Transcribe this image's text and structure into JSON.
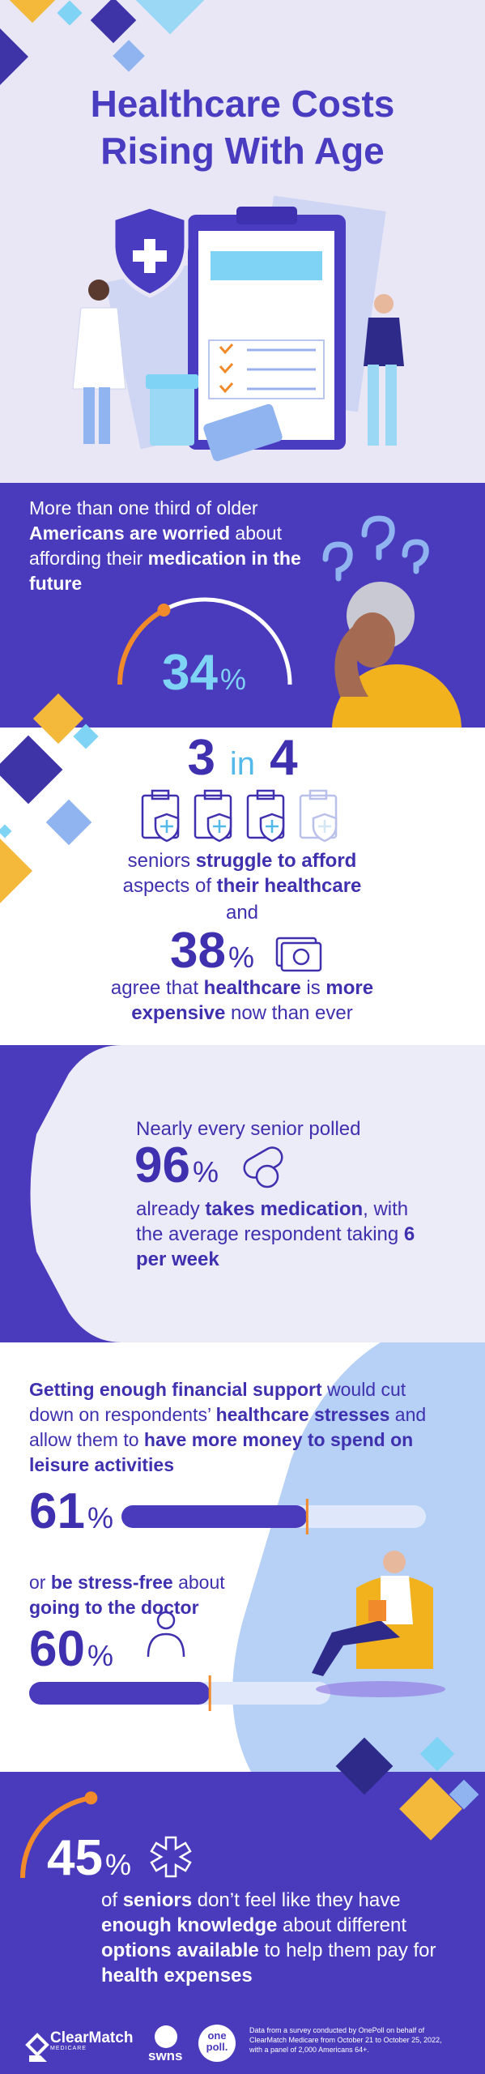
{
  "header": {
    "title": [
      "Healthcare Costs",
      "Rising With Age"
    ]
  },
  "worried": {
    "text": [
      {
        "text": "More than one third of older "
      },
      {
        "text": "Americans are worried",
        "bold": true
      },
      {
        "text": " about affording their "
      },
      {
        "text": "medication in the future",
        "bold": true
      }
    ],
    "stat": {
      "value": 34,
      "unit": "%"
    },
    "range": [
      0,
      100
    ]
  },
  "afford": {
    "ratio": {
      "numerator": 3,
      "word": "in",
      "denominator": 4
    },
    "text": [
      {
        "text": "seniors "
      },
      {
        "text": "struggle to afford",
        "bold": true
      },
      {
        "text": " aspects of "
      },
      {
        "text": "their healthcare",
        "bold": true
      }
    ],
    "conjunction": "and",
    "stat": {
      "value": 38,
      "unit": "%"
    },
    "text2": [
      {
        "text": "agree that "
      },
      {
        "text": "healthcare",
        "bold": true
      },
      {
        "text": " is "
      },
      {
        "text": "more expensive",
        "bold": true
      },
      {
        "text": " now than ever"
      }
    ]
  },
  "medication": {
    "lead": "Nearly every senior polled",
    "stat": {
      "value": 96,
      "unit": "%"
    },
    "text": [
      {
        "text": "already "
      },
      {
        "text": "takes medication",
        "bold": true
      },
      {
        "text": ", with the average respondent taking "
      },
      {
        "text": "6 per week",
        "bold": true
      }
    ]
  },
  "support": {
    "text": [
      {
        "text": "Getting enough financial support",
        "bold": true
      },
      {
        "text": " would cut down on respondents’ "
      },
      {
        "text": "healthcare stresses",
        "bold": true
      },
      {
        "text": " and allow them to "
      },
      {
        "text": "have more money to spend on leisure activities",
        "bold": true
      }
    ],
    "stat": {
      "value": 61,
      "unit": "%"
    },
    "text2": [
      {
        "text": "or "
      },
      {
        "text": "be stress-free",
        "bold": true
      },
      {
        "text": " about "
      },
      {
        "text": "going to the doctor",
        "bold": true
      }
    ],
    "stat2": {
      "value": 60,
      "unit": "%"
    },
    "range": [
      0,
      100
    ]
  },
  "knowledge": {
    "stat": {
      "value": 45,
      "unit": "%"
    },
    "range": [
      0,
      100
    ],
    "text": [
      {
        "text": "of "
      },
      {
        "text": "seniors",
        "bold": true
      },
      {
        "text": " don’t feel like they have "
      },
      {
        "text": "enough knowledge",
        "bold": true
      },
      {
        "text": " about different "
      },
      {
        "text": "options available",
        "bold": true
      },
      {
        "text": " to help them pay for "
      },
      {
        "text": "health expenses",
        "bold": true
      }
    ]
  },
  "footer": {
    "logos": [
      {
        "name": "ClearMatch",
        "sub": "MEDICARE"
      },
      {
        "name": "swns"
      },
      {
        "name": "one poll."
      }
    ],
    "source": "Data from a survey conducted by OnePoll on behalf of ClearMatch Medicare from October 21 to October 25, 2022, with a panel of 2,000 Americans 64+."
  }
}
